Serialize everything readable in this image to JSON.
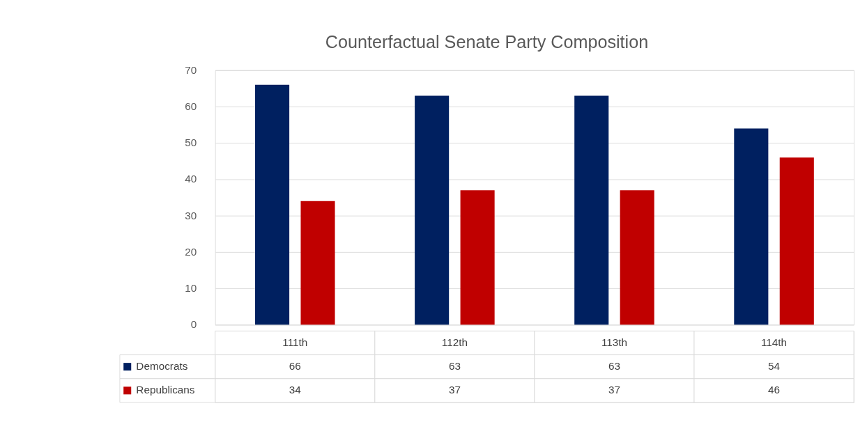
{
  "chart_data": {
    "type": "bar",
    "title": "Counterfactual Senate Party Composition",
    "categories": [
      "111th",
      "112th",
      "113th",
      "114th"
    ],
    "series": [
      {
        "name": "Democrats",
        "color": "#002060",
        "values": [
          66,
          63,
          63,
          54
        ]
      },
      {
        "name": "Republicans",
        "color": "#c00000",
        "values": [
          34,
          37,
          37,
          46
        ]
      }
    ],
    "ylim": [
      0,
      70
    ],
    "yticks": [
      0,
      10,
      20,
      30,
      40,
      50,
      60,
      70
    ],
    "grid": "y",
    "legend": "bottom left",
    "data_labels": true
  }
}
